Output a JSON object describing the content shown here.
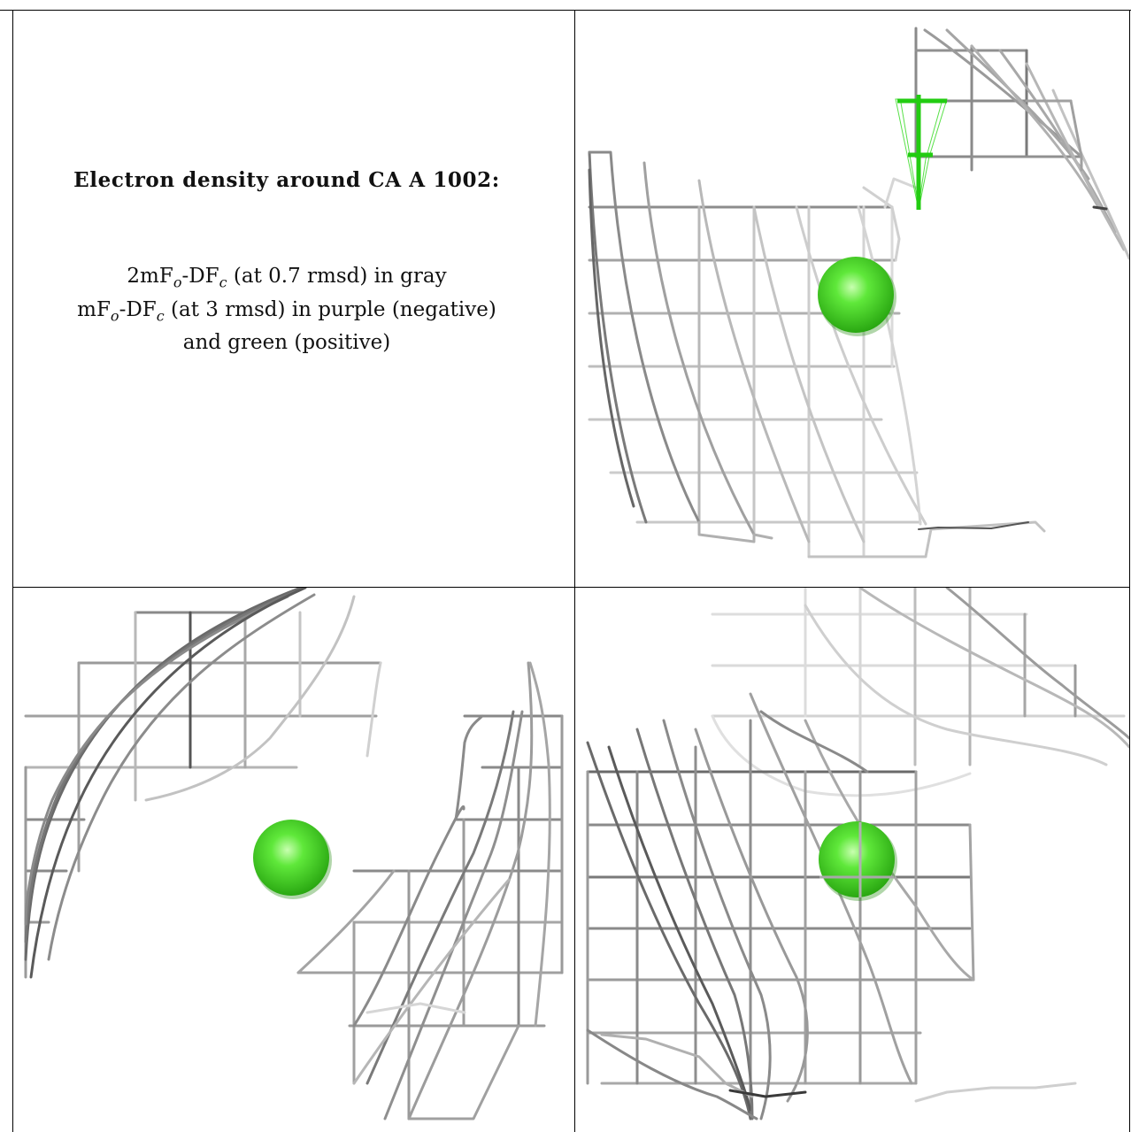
{
  "caption": {
    "title": "Electron density around CA A 1002:",
    "line1_a": "2mF",
    "line1_sub1": "o",
    "line1_b": "-DF",
    "line1_sub2": "c",
    "line1_c": " (at 0.7 rmsd) in gray",
    "line2_a": "mF",
    "line2_sub1": "o",
    "line2_b": "-DF",
    "line2_sub2": "c",
    "line2_c": " (at 3 rmsd) in purple (negative)",
    "line3": "and green (positive)"
  },
  "colors": {
    "sphere": "#39e01e",
    "positive_density": "#22cc11",
    "mesh_dark": "#555555",
    "mesh_mid": "#8a8a8a",
    "mesh_light": "#cfcfcf"
  },
  "panels": [
    {
      "name": "caption-panel",
      "content": "caption"
    },
    {
      "name": "view-top-right",
      "content": "calcium-ion-with-2fofc-and-positive-fofc-mesh"
    },
    {
      "name": "view-bottom-left",
      "content": "calcium-ion-with-2fofc-mesh"
    },
    {
      "name": "view-bottom-right",
      "content": "calcium-ion-with-2fofc-mesh"
    }
  ]
}
